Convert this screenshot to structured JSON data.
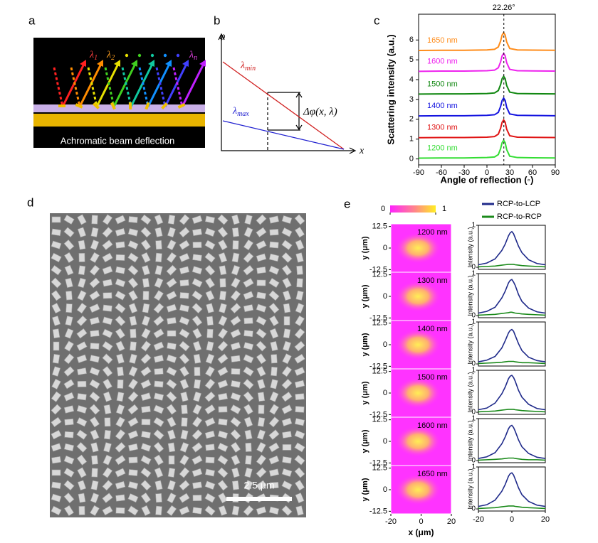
{
  "panel_labels": [
    "a",
    "b",
    "c",
    "d",
    "e"
  ],
  "panel_a": {
    "lambda": "λ",
    "subscripts": [
      "1",
      "2",
      "n"
    ],
    "caption": "Achromatic  beam deflection"
  },
  "panel_b": {
    "y_axis": "φ",
    "x_axis": "x",
    "lambda": "λ",
    "min": "min",
    "max": "max",
    "delta": "Δφ(x, λ)"
  },
  "panel_d": {
    "scale_bar": "2.5 μm"
  },
  "chart_data": [
    {
      "type": "line",
      "xlabel": "Angle of reflection (◦)",
      "ylabel": "Scattering intensity (a.u.)",
      "annotation": {
        "value": 22.26,
        "label": "22.26°"
      },
      "x": [
        -90,
        -60,
        -30,
        0,
        10,
        15,
        18,
        20,
        22,
        24,
        26,
        30,
        40,
        60,
        90
      ],
      "xlim": [
        -90,
        90
      ],
      "xticks": [
        -90,
        -60,
        -30,
        0,
        30,
        60,
        90
      ],
      "ylim": [
        -0.3,
        7.3
      ],
      "yticks": [
        0,
        1,
        2,
        3,
        4,
        5,
        6
      ],
      "series": [
        {
          "name": "1200 nm",
          "color": "#33dd33",
          "values": [
            0.04,
            0.05,
            0.05,
            0.07,
            0.1,
            0.22,
            0.52,
            0.82,
            0.94,
            0.82,
            0.47,
            0.14,
            0.07,
            0.06,
            0.05
          ]
        },
        {
          "name": "1300 nm",
          "color": "#e01414",
          "values": [
            1.07,
            1.08,
            1.08,
            1.1,
            1.13,
            1.25,
            1.55,
            1.85,
            1.97,
            1.85,
            1.5,
            1.17,
            1.1,
            1.09,
            1.08
          ]
        },
        {
          "name": "1400 nm",
          "color": "#1414e0",
          "values": [
            2.17,
            2.18,
            2.18,
            2.2,
            2.23,
            2.35,
            2.65,
            2.95,
            3.07,
            2.95,
            2.6,
            2.27,
            2.2,
            2.19,
            2.18
          ]
        },
        {
          "name": "1500 nm",
          "color": "#128812",
          "values": [
            3.27,
            3.28,
            3.28,
            3.3,
            3.33,
            3.45,
            3.75,
            4.05,
            4.17,
            4.05,
            3.7,
            3.37,
            3.3,
            3.29,
            3.28
          ]
        },
        {
          "name": "1600 nm",
          "color": "#ee22ee",
          "values": [
            4.42,
            4.43,
            4.43,
            4.45,
            4.48,
            4.6,
            4.9,
            5.2,
            5.32,
            5.2,
            4.85,
            4.52,
            4.45,
            4.44,
            4.43
          ]
        },
        {
          "name": "1650 nm",
          "color": "#ff8c1a",
          "values": [
            5.47,
            5.48,
            5.48,
            5.5,
            5.53,
            5.65,
            5.95,
            6.25,
            6.37,
            6.25,
            5.9,
            5.57,
            5.5,
            5.49,
            5.48
          ]
        }
      ]
    },
    {
      "type": "profiles",
      "colorbar_ticks": [
        0,
        1
      ],
      "map_xlim": [
        -20,
        20
      ],
      "map_xticks": [
        -20,
        0,
        20
      ],
      "map_ylim": [
        -14,
        14
      ],
      "map_yticks": [
        12.5,
        0,
        -12.5
      ],
      "xlabel": "x (μm)",
      "map_ylabel": "y (μm)",
      "profile_ylabel": "Intensity (a.u.)",
      "x": [
        -20,
        -15,
        -10,
        -6,
        -4,
        -2,
        -1,
        0,
        1,
        2,
        4,
        6,
        10,
        15,
        20
      ],
      "xlim": [
        -20,
        20
      ],
      "xticks": [
        -20,
        0,
        20
      ],
      "ylim": [
        -0.05,
        1
      ],
      "yticks": [
        0,
        1
      ],
      "series": [
        {
          "name": "RCP-to-LCP",
          "color": "#1f2a8a"
        },
        {
          "name": "RCP-to-RCP",
          "color": "#1a8a1a"
        }
      ],
      "rows": [
        {
          "label": "1200 nm",
          "values": [
            [
              0.06,
              0.1,
              0.2,
              0.4,
              0.55,
              0.75,
              0.82,
              0.85,
              0.8,
              0.7,
              0.5,
              0.35,
              0.18,
              0.09,
              0.06
            ],
            [
              0.01,
              0.02,
              0.03,
              0.05,
              0.06,
              0.07,
              0.07,
              0.07,
              0.07,
              0.06,
              0.05,
              0.04,
              0.03,
              0.02,
              0.01
            ]
          ]
        },
        {
          "label": "1300 nm",
          "values": [
            [
              0.06,
              0.1,
              0.2,
              0.42,
              0.58,
              0.78,
              0.84,
              0.86,
              0.8,
              0.72,
              0.5,
              0.34,
              0.18,
              0.09,
              0.06
            ],
            [
              0.01,
              0.02,
              0.03,
              0.05,
              0.06,
              0.07,
              0.08,
              0.08,
              0.07,
              0.06,
              0.05,
              0.04,
              0.03,
              0.02,
              0.01
            ]
          ]
        },
        {
          "label": "1400 nm",
          "values": [
            [
              0.05,
              0.09,
              0.18,
              0.38,
              0.55,
              0.74,
              0.8,
              0.82,
              0.78,
              0.68,
              0.48,
              0.32,
              0.16,
              0.08,
              0.05
            ],
            [
              0.01,
              0.02,
              0.03,
              0.04,
              0.05,
              0.06,
              0.06,
              0.06,
              0.06,
              0.05,
              0.04,
              0.03,
              0.03,
              0.02,
              0.01
            ]
          ]
        },
        {
          "label": "1500 nm",
          "values": [
            [
              0.06,
              0.1,
              0.22,
              0.44,
              0.6,
              0.8,
              0.86,
              0.88,
              0.83,
              0.74,
              0.52,
              0.36,
              0.19,
              0.09,
              0.06
            ],
            [
              0.01,
              0.02,
              0.03,
              0.05,
              0.06,
              0.07,
              0.07,
              0.07,
              0.07,
              0.06,
              0.05,
              0.04,
              0.03,
              0.02,
              0.01
            ]
          ]
        },
        {
          "label": "1600 nm",
          "values": [
            [
              0.05,
              0.09,
              0.19,
              0.4,
              0.56,
              0.76,
              0.82,
              0.84,
              0.79,
              0.7,
              0.49,
              0.33,
              0.17,
              0.08,
              0.05
            ],
            [
              0.01,
              0.02,
              0.03,
              0.04,
              0.05,
              0.06,
              0.06,
              0.06,
              0.06,
              0.05,
              0.04,
              0.03,
              0.02,
              0.02,
              0.01
            ]
          ]
        },
        {
          "label": "1650 nm",
          "values": [
            [
              0.06,
              0.1,
              0.21,
              0.42,
              0.58,
              0.78,
              0.84,
              0.86,
              0.81,
              0.71,
              0.5,
              0.34,
              0.18,
              0.09,
              0.06
            ],
            [
              0.01,
              0.02,
              0.03,
              0.05,
              0.06,
              0.07,
              0.07,
              0.07,
              0.07,
              0.06,
              0.05,
              0.04,
              0.03,
              0.02,
              0.01
            ]
          ]
        }
      ]
    }
  ]
}
